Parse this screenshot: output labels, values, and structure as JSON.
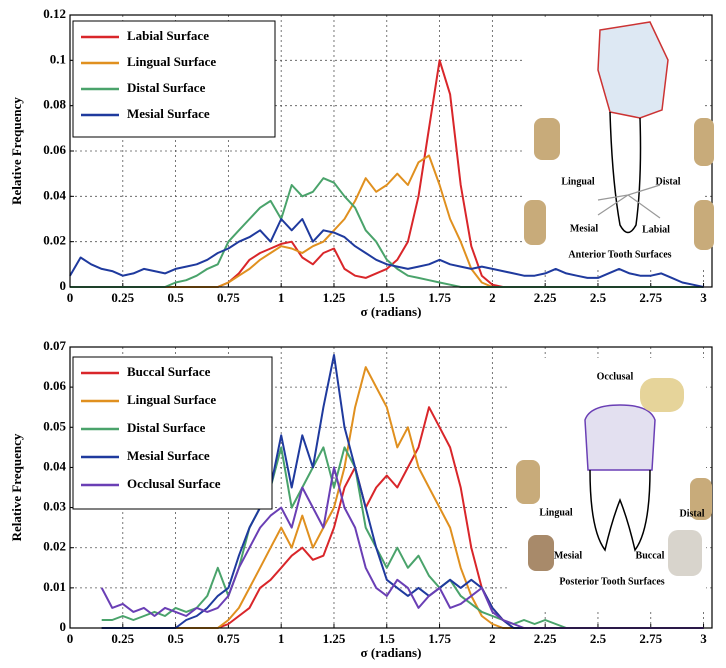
{
  "charts": [
    {
      "type": "line",
      "xlabel": "σ (radians)",
      "ylabel": "Relative Frequency",
      "grid": true,
      "legend": "upper left",
      "xlim": [
        0,
        3.04
      ],
      "ylim": [
        0,
        0.12
      ],
      "xticks": [
        0,
        0.25,
        0.5,
        0.75,
        1,
        1.25,
        1.5,
        1.75,
        2,
        2.25,
        2.5,
        2.75,
        3
      ],
      "yticks": [
        0,
        0.02,
        0.04,
        0.06,
        0.08,
        0.1,
        0.12
      ],
      "annotations": [
        "Lingual",
        "Distal",
        "Mesial",
        "Labial",
        "Anterior Tooth Surfaces"
      ],
      "x": [
        0,
        0.05,
        0.1,
        0.15,
        0.2,
        0.25,
        0.3,
        0.35,
        0.4,
        0.45,
        0.5,
        0.55,
        0.6,
        0.65,
        0.7,
        0.75,
        0.8,
        0.85,
        0.9,
        0.95,
        1,
        1.05,
        1.1,
        1.15,
        1.2,
        1.25,
        1.3,
        1.35,
        1.4,
        1.45,
        1.5,
        1.55,
        1.6,
        1.65,
        1.7,
        1.75,
        1.8,
        1.85,
        1.9,
        1.95,
        2,
        2.05,
        2.1,
        2.15,
        2.2,
        2.25,
        2.3,
        2.35,
        2.4,
        2.45,
        2.5,
        2.55,
        2.6,
        2.65,
        2.7,
        2.75,
        2.8,
        2.85,
        2.9,
        2.95,
        3
      ],
      "series": [
        {
          "name": "Labial Surface",
          "color": "#d9262a",
          "values": [
            0,
            0,
            0,
            0,
            0,
            0,
            0,
            0,
            0,
            0,
            0,
            0,
            0,
            0,
            0,
            0.002,
            0.006,
            0.012,
            0.015,
            0.017,
            0.019,
            0.02,
            0.013,
            0.01,
            0.015,
            0.017,
            0.008,
            0.005,
            0.004,
            0.006,
            0.008,
            0.012,
            0.02,
            0.04,
            0.07,
            0.1,
            0.085,
            0.045,
            0.018,
            0.005,
            0.001,
            0,
            0,
            0,
            0,
            0,
            0,
            0,
            0,
            0,
            0,
            0,
            0,
            0,
            0,
            0,
            0,
            0,
            0,
            0,
            0
          ]
        },
        {
          "name": "Lingual Surface",
          "color": "#e0901f",
          "values": [
            0,
            0,
            0,
            0,
            0,
            0,
            0,
            0,
            0,
            0,
            0,
            0,
            0,
            0,
            0,
            0.002,
            0.005,
            0.008,
            0.012,
            0.015,
            0.018,
            0.017,
            0.015,
            0.018,
            0.02,
            0.025,
            0.03,
            0.038,
            0.048,
            0.042,
            0.045,
            0.05,
            0.045,
            0.055,
            0.058,
            0.045,
            0.03,
            0.02,
            0.008,
            0.002,
            0,
            0,
            0,
            0,
            0,
            0,
            0,
            0,
            0,
            0,
            0,
            0,
            0,
            0,
            0,
            0,
            0,
            0,
            0,
            0,
            0
          ]
        },
        {
          "name": "Distal Surface",
          "color": "#4aa36b",
          "values": [
            0,
            0,
            0,
            0,
            0,
            0,
            0,
            0,
            0,
            0,
            0.002,
            0.003,
            0.005,
            0.008,
            0.01,
            0.02,
            0.025,
            0.03,
            0.035,
            0.038,
            0.03,
            0.045,
            0.04,
            0.042,
            0.048,
            0.046,
            0.04,
            0.035,
            0.025,
            0.02,
            0.012,
            0.008,
            0.005,
            0.004,
            0.003,
            0.002,
            0.001,
            0,
            0,
            0,
            0,
            0,
            0,
            0,
            0,
            0,
            0,
            0,
            0,
            0,
            0,
            0,
            0,
            0,
            0,
            0,
            0,
            0,
            0,
            0,
            0
          ]
        },
        {
          "name": "Mesial Surface",
          "color": "#1f3a9e",
          "values": [
            0.005,
            0.013,
            0.01,
            0.008,
            0.007,
            0.005,
            0.006,
            0.008,
            0.007,
            0.006,
            0.008,
            0.009,
            0.01,
            0.012,
            0.015,
            0.017,
            0.02,
            0.022,
            0.025,
            0.02,
            0.03,
            0.025,
            0.03,
            0.02,
            0.025,
            0.024,
            0.022,
            0.018,
            0.015,
            0.012,
            0.01,
            0.009,
            0.008,
            0.009,
            0.01,
            0.012,
            0.01,
            0.009,
            0.008,
            0.009,
            0.008,
            0.007,
            0.006,
            0.005,
            0.005,
            0.006,
            0.008,
            0.006,
            0.005,
            0.004,
            0.004,
            0.006,
            0.008,
            0.006,
            0.005,
            0.005,
            0.006,
            0.004,
            0.002,
            0.001,
            0
          ]
        }
      ]
    },
    {
      "type": "line",
      "xlabel": "σ (radians)",
      "ylabel": "Relative Frequency",
      "grid": true,
      "legend": "upper left",
      "xlim": [
        0,
        3.04
      ],
      "ylim": [
        0,
        0.07
      ],
      "xticks": [
        0,
        0.25,
        0.5,
        0.75,
        1,
        1.25,
        1.5,
        1.75,
        2,
        2.25,
        2.5,
        2.75,
        3
      ],
      "yticks": [
        0,
        0.01,
        0.02,
        0.03,
        0.04,
        0.05,
        0.06,
        0.07
      ],
      "annotations": [
        "Occlusal",
        "Lingual",
        "Distal",
        "Mesial",
        "Buccal",
        "Posterior Tooth Surfaces"
      ],
      "x": [
        0.15,
        0.2,
        0.25,
        0.3,
        0.35,
        0.4,
        0.45,
        0.5,
        0.55,
        0.6,
        0.65,
        0.7,
        0.75,
        0.8,
        0.85,
        0.9,
        0.95,
        1,
        1.05,
        1.1,
        1.15,
        1.2,
        1.25,
        1.3,
        1.35,
        1.4,
        1.45,
        1.5,
        1.55,
        1.6,
        1.65,
        1.7,
        1.75,
        1.8,
        1.85,
        1.9,
        1.95,
        2,
        2.05,
        2.1,
        2.15,
        2.2,
        2.25,
        2.3,
        2.35,
        2.4,
        2.45,
        2.5,
        2.55,
        2.6,
        2.65,
        2.7,
        2.75,
        2.8,
        2.85,
        2.9,
        2.95,
        3
      ],
      "series": [
        {
          "name": "Buccal Surface",
          "color": "#d9262a",
          "values": [
            0,
            0,
            0,
            0,
            0,
            0,
            0,
            0,
            0,
            0,
            0,
            0,
            0.001,
            0.003,
            0.005,
            0.01,
            0.012,
            0.015,
            0.018,
            0.02,
            0.017,
            0.018,
            0.025,
            0.035,
            0.04,
            0.03,
            0.035,
            0.038,
            0.035,
            0.04,
            0.045,
            0.055,
            0.05,
            0.045,
            0.035,
            0.02,
            0.01,
            0.005,
            0.002,
            0,
            0,
            0,
            0,
            0,
            0,
            0,
            0,
            0,
            0,
            0,
            0,
            0,
            0,
            0,
            0,
            0,
            0,
            0
          ]
        },
        {
          "name": "Lingual Surface",
          "color": "#e0901f",
          "values": [
            0,
            0,
            0,
            0,
            0,
            0,
            0,
            0,
            0,
            0,
            0,
            0,
            0.002,
            0.005,
            0.01,
            0.015,
            0.02,
            0.025,
            0.02,
            0.028,
            0.02,
            0.025,
            0.03,
            0.04,
            0.055,
            0.065,
            0.06,
            0.055,
            0.045,
            0.05,
            0.04,
            0.035,
            0.03,
            0.025,
            0.015,
            0.008,
            0.003,
            0.001,
            0,
            0,
            0,
            0,
            0,
            0,
            0,
            0,
            0,
            0,
            0,
            0,
            0,
            0,
            0,
            0,
            0,
            0,
            0,
            0
          ]
        },
        {
          "name": "Distal Surface",
          "color": "#4aa36b",
          "values": [
            0.002,
            0.002,
            0.003,
            0.002,
            0.003,
            0.004,
            0.003,
            0.005,
            0.004,
            0.005,
            0.008,
            0.015,
            0.008,
            0.015,
            0.025,
            0.03,
            0.035,
            0.045,
            0.03,
            0.035,
            0.04,
            0.045,
            0.035,
            0.045,
            0.04,
            0.025,
            0.02,
            0.015,
            0.02,
            0.015,
            0.018,
            0.013,
            0.01,
            0.012,
            0.008,
            0.006,
            0.004,
            0.003,
            0.002,
            0.001,
            0.002,
            0.001,
            0.002,
            0.001,
            0,
            0,
            0,
            0,
            0,
            0,
            0,
            0,
            0,
            0,
            0,
            0,
            0,
            0
          ]
        },
        {
          "name": "Mesial Surface",
          "color": "#1f3a9e",
          "values": [
            0,
            0,
            0,
            0,
            0,
            0,
            0,
            0,
            0.002,
            0.003,
            0.005,
            0.008,
            0.01,
            0.018,
            0.025,
            0.03,
            0.035,
            0.048,
            0.035,
            0.048,
            0.04,
            0.055,
            0.068,
            0.05,
            0.04,
            0.03,
            0.02,
            0.012,
            0.01,
            0.008,
            0.01,
            0.008,
            0.01,
            0.012,
            0.01,
            0.012,
            0.01,
            0.005,
            0.002,
            0,
            0,
            0,
            0,
            0,
            0,
            0,
            0,
            0,
            0,
            0,
            0,
            0,
            0,
            0,
            0,
            0,
            0,
            0
          ]
        },
        {
          "name": "Occlusal Surface",
          "color": "#6a3fb5",
          "values": [
            0.01,
            0.005,
            0.006,
            0.004,
            0.005,
            0.003,
            0.005,
            0.004,
            0.003,
            0.005,
            0.004,
            0.005,
            0.008,
            0.015,
            0.02,
            0.025,
            0.028,
            0.03,
            0.025,
            0.035,
            0.03,
            0.025,
            0.04,
            0.03,
            0.025,
            0.015,
            0.01,
            0.008,
            0.012,
            0.01,
            0.005,
            0.008,
            0.01,
            0.005,
            0.006,
            0.008,
            0.01,
            0.004,
            0.002,
            0.001,
            0,
            0,
            0,
            0,
            0,
            0,
            0,
            0,
            0,
            0,
            0,
            0,
            0,
            0,
            0,
            0,
            0,
            0
          ]
        }
      ]
    }
  ]
}
